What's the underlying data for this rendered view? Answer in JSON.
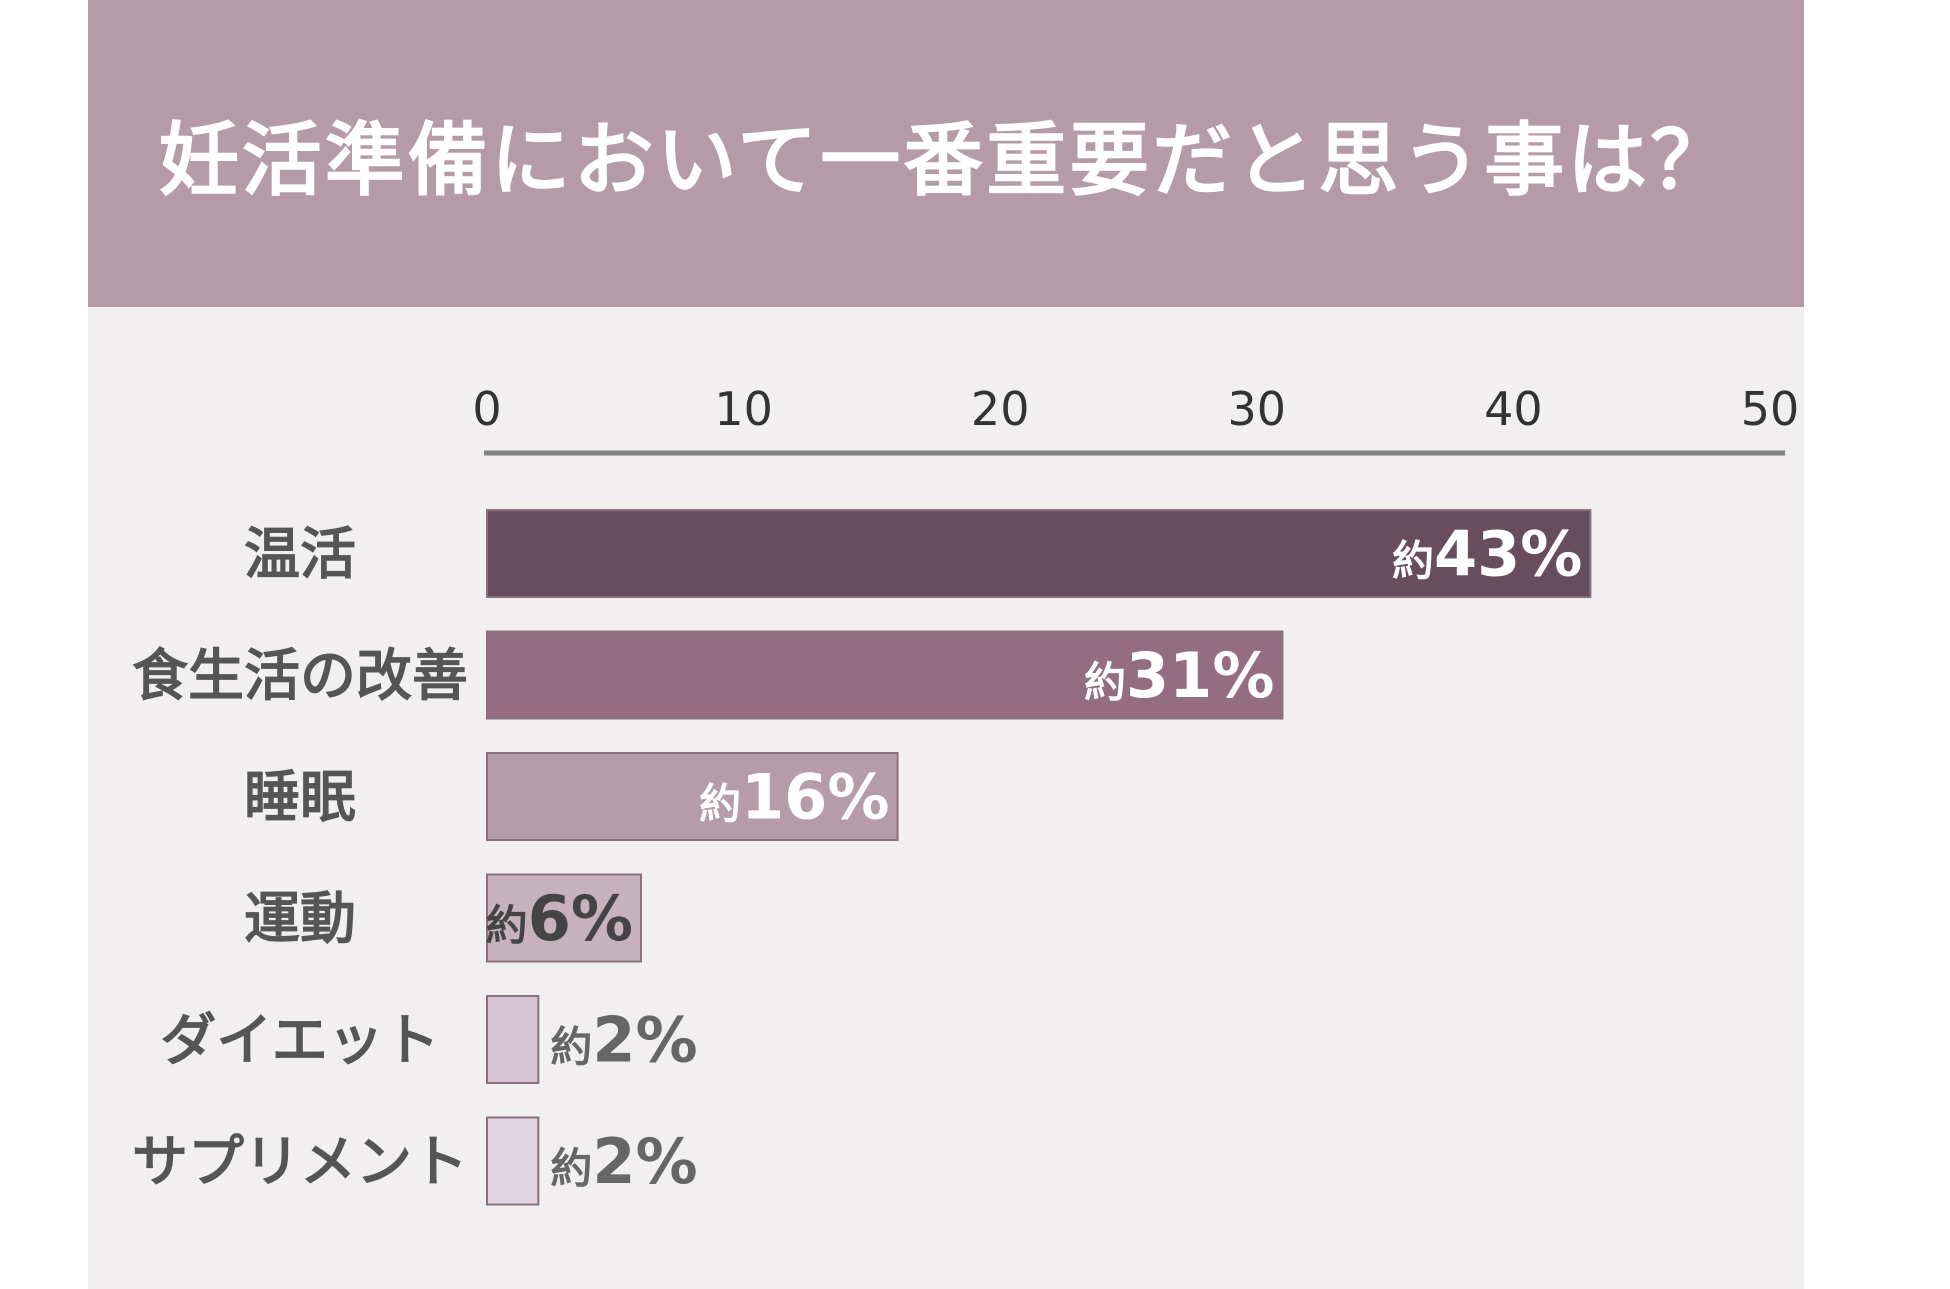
{
  "chart_data": {
    "type": "bar",
    "orientation": "horizontal",
    "title": "妊活準備において一番重要だと思う事は？",
    "categories": [
      "温活",
      "食生活の改善",
      "睡眠",
      "運動",
      "ダイエット",
      "サプリメント"
    ],
    "values": [
      43,
      31,
      16,
      6,
      2,
      2
    ],
    "value_labels": [
      {
        "prefix": "約",
        "value": "43%"
      },
      {
        "prefix": "約",
        "value": "31%"
      },
      {
        "prefix": "約",
        "value": "16%"
      },
      {
        "prefix": "約",
        "value": "6%"
      },
      {
        "prefix": "約",
        "value": "2%"
      },
      {
        "prefix": "約",
        "value": "2%"
      }
    ],
    "xticks": [
      "0",
      "10",
      "20",
      "30",
      "40",
      "50"
    ],
    "xlim": [
      0,
      50
    ],
    "axis_position": "top",
    "grid": false,
    "colors": [
      "#684e5d",
      "#946e80",
      "#b69ba9",
      "#c7b1bd",
      "#d5c5d3",
      "#e2d7e0"
    ],
    "label_colors": [
      "#ffffff",
      "#ffffff",
      "#ffffff",
      "#444444",
      "#666666",
      "#666666"
    ],
    "label_inside": [
      true,
      true,
      true,
      true,
      false,
      false
    ]
  }
}
